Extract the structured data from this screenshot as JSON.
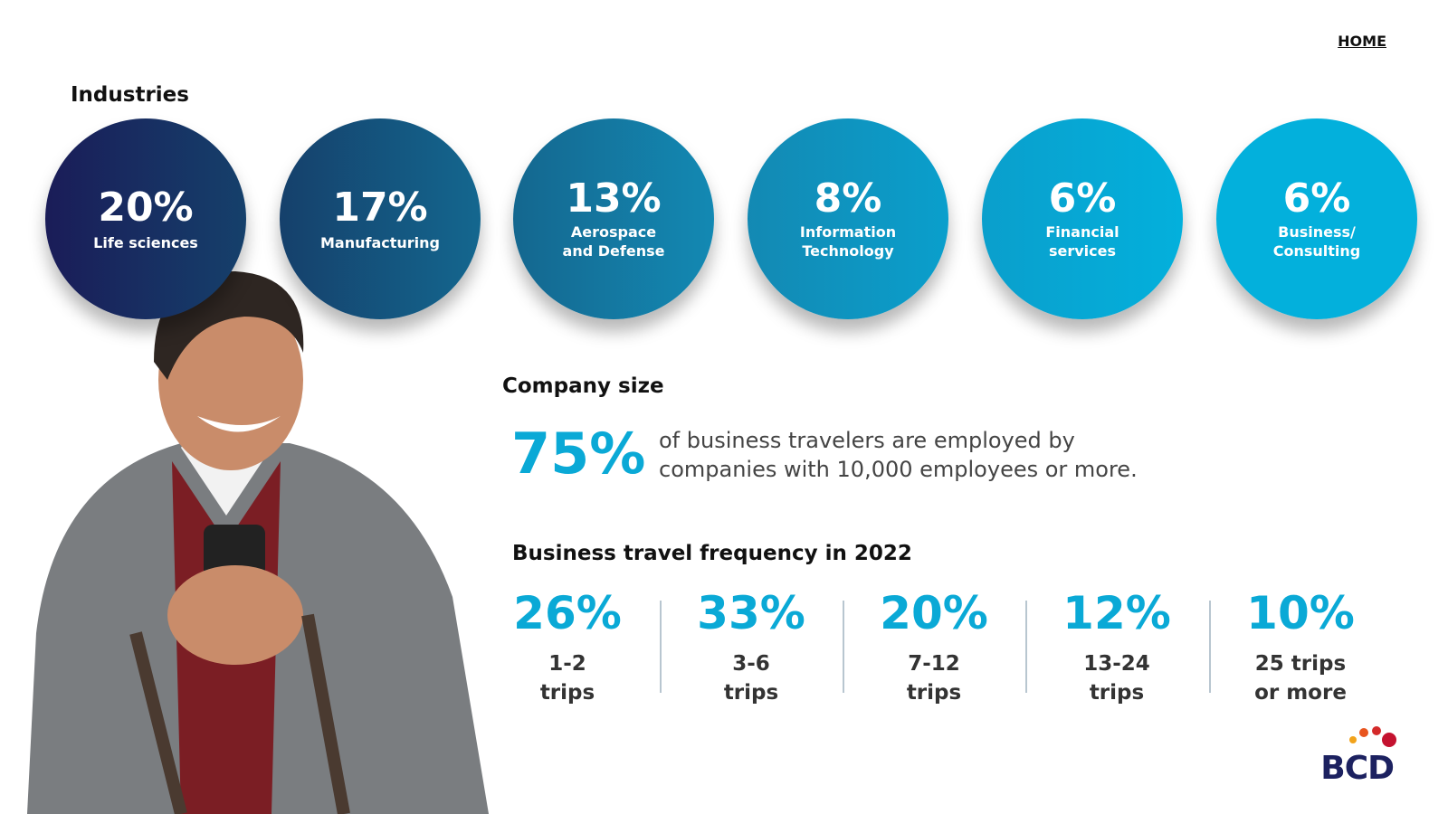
{
  "header": {
    "nav": "HOME",
    "logo": "BCD"
  },
  "industries": {
    "title": "Industries",
    "items": [
      {
        "value": "20%",
        "lines": [
          "Life sciences"
        ]
      },
      {
        "value": "17%",
        "lines": [
          "Manufacturing"
        ]
      },
      {
        "value": "13%",
        "lines": [
          "Aerospace",
          "and Defense"
        ]
      },
      {
        "value": "8%",
        "lines": [
          "Information",
          "Technology"
        ]
      },
      {
        "value": "6%",
        "lines": [
          "Financial",
          "services"
        ]
      },
      {
        "value": "6%",
        "lines": [
          "Business/",
          "Consulting"
        ]
      }
    ]
  },
  "company_size": {
    "title": "Company size",
    "value": "75%",
    "lines": [
      "of business travelers are employed by",
      "companies with 10,000 employees or more."
    ]
  },
  "frequency": {
    "title": "Business travel frequency in 2022",
    "items": [
      {
        "value": "26%",
        "lines": [
          "1-2",
          "trips"
        ]
      },
      {
        "value": "33%",
        "lines": [
          "3-6",
          "trips"
        ]
      },
      {
        "value": "20%",
        "lines": [
          "7-12",
          "trips"
        ]
      },
      {
        "value": "12%",
        "lines": [
          "13-24",
          "trips"
        ]
      },
      {
        "value": "10%",
        "lines": [
          "25 trips",
          "or more"
        ]
      }
    ]
  }
}
